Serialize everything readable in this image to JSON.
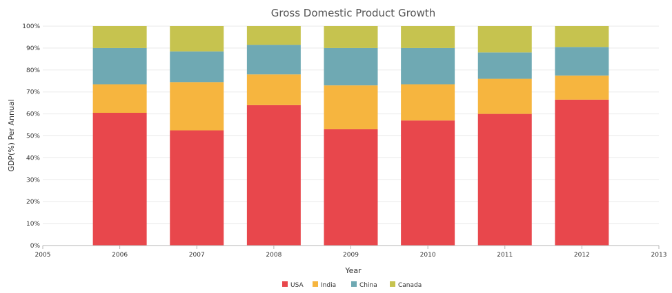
{
  "chart_data": {
    "type": "bar",
    "stacking": "percent",
    "title": "Gross Domestic Product Growth",
    "xlabel": "Year",
    "ylabel": "GDP(%) Per Annual",
    "xlim": [
      2005,
      2013
    ],
    "ylim": [
      0,
      100
    ],
    "x_ticks": [
      "2005",
      "2006",
      "2007",
      "2008",
      "2009",
      "2010",
      "2011",
      "2012",
      "2013"
    ],
    "y_ticks": [
      "0%",
      "10%",
      "20%",
      "30%",
      "40%",
      "50%",
      "60%",
      "70%",
      "80%",
      "90%",
      "100%"
    ],
    "categories": [
      2006,
      2007,
      2008,
      2009,
      2010,
      2011,
      2012
    ],
    "series": [
      {
        "name": "USA",
        "color": "#e8474c",
        "values": [
          60.5,
          52.5,
          64.0,
          53.0,
          57.0,
          60.0,
          66.5
        ]
      },
      {
        "name": "India",
        "color": "#f6b53f",
        "values": [
          13.0,
          22.0,
          14.0,
          20.0,
          16.5,
          16.0,
          11.0
        ]
      },
      {
        "name": "China",
        "color": "#6fa9b3",
        "values": [
          16.5,
          14.0,
          13.5,
          17.0,
          16.5,
          12.0,
          13.0
        ]
      },
      {
        "name": "Canada",
        "color": "#c6c34f",
        "values": [
          10.0,
          11.5,
          8.5,
          10.0,
          10.0,
          12.0,
          9.5
        ]
      }
    ],
    "grid": true,
    "legend_position": "bottom-center",
    "gridline_color": "#e8e8e8",
    "axis_color": "#b5b5b5"
  }
}
